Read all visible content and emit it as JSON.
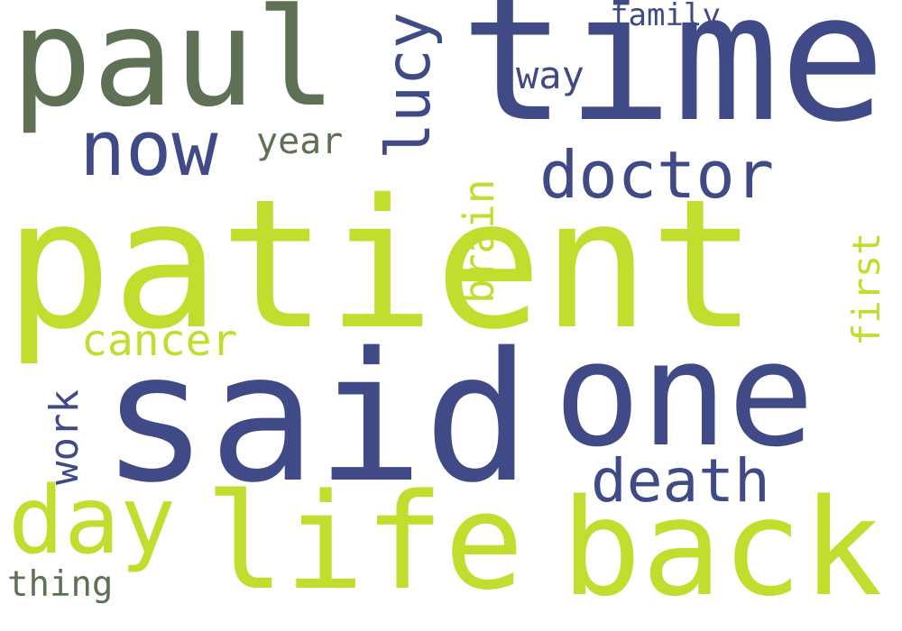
{
  "colors": {
    "navy": "#3f4a86",
    "lime": "#c3dd2e",
    "olive": "#5e7155",
    "background": "#ffffff"
  },
  "words": [
    {
      "text": "patient",
      "color": "lime"
    },
    {
      "text": "time",
      "color": "navy"
    },
    {
      "text": "said",
      "color": "navy"
    },
    {
      "text": "one",
      "color": "navy"
    },
    {
      "text": "paul",
      "color": "olive"
    },
    {
      "text": "life",
      "color": "lime"
    },
    {
      "text": "back",
      "color": "lime"
    },
    {
      "text": "now",
      "color": "navy"
    },
    {
      "text": "day",
      "color": "lime"
    },
    {
      "text": "doctor",
      "color": "navy"
    },
    {
      "text": "death",
      "color": "navy"
    },
    {
      "text": "lucy",
      "color": "navy"
    },
    {
      "text": "cancer",
      "color": "lime"
    },
    {
      "text": "brain",
      "color": "lime"
    },
    {
      "text": "first",
      "color": "lime"
    },
    {
      "text": "way",
      "color": "navy"
    },
    {
      "text": "year",
      "color": "olive"
    },
    {
      "text": "work",
      "color": "navy"
    },
    {
      "text": "thing",
      "color": "olive"
    },
    {
      "text": "family",
      "color": "navy"
    }
  ]
}
